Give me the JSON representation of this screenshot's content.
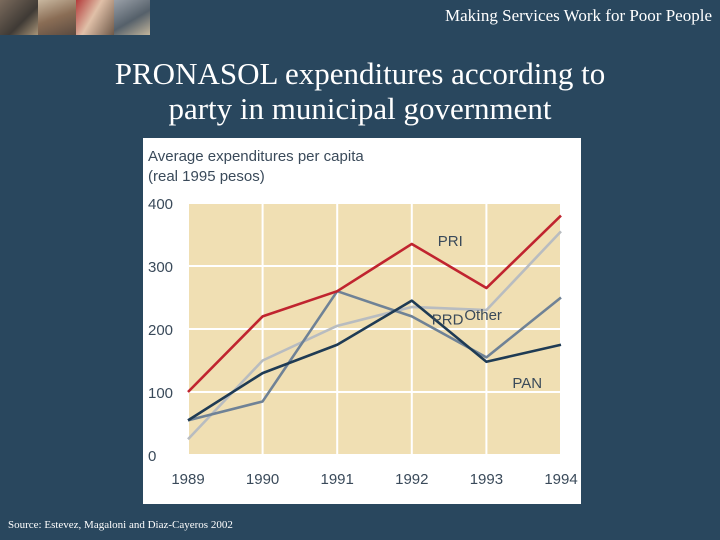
{
  "header": {
    "text": "Making Services Work for Poor People"
  },
  "title": {
    "line1": "PRONASOL expenditures according to",
    "line2": "party in municipal government"
  },
  "source": "Source: Estevez, Magaloni and Diaz-Cayeros 2002",
  "colors": {
    "background": "#29475e",
    "plot_bg": "#f0dfb3",
    "grid": "#ffffff",
    "PRI": "#c0242f",
    "PRD": "#6f8296",
    "Other": "#b8bcc0",
    "PAN": "#1f3b54",
    "text": "#3a4a5a"
  },
  "chart_data": {
    "type": "line",
    "title": "Average expenditures per capita\n(real 1995 pesos)",
    "xlabel": "",
    "ylabel": "",
    "x": [
      "1989",
      "1990",
      "1991",
      "1992",
      "1993",
      "1994"
    ],
    "ylim": [
      0,
      400
    ],
    "yticks": [
      0,
      100,
      200,
      300,
      400
    ],
    "grid": true,
    "series": [
      {
        "name": "PRI",
        "values": [
          100,
          220,
          260,
          335,
          265,
          380
        ]
      },
      {
        "name": "PRD",
        "values": [
          55,
          85,
          260,
          220,
          155,
          250
        ]
      },
      {
        "name": "Other",
        "values": [
          25,
          150,
          205,
          235,
          230,
          355
        ]
      },
      {
        "name": "PAN",
        "values": [
          55,
          130,
          175,
          245,
          148,
          175
        ]
      }
    ]
  }
}
